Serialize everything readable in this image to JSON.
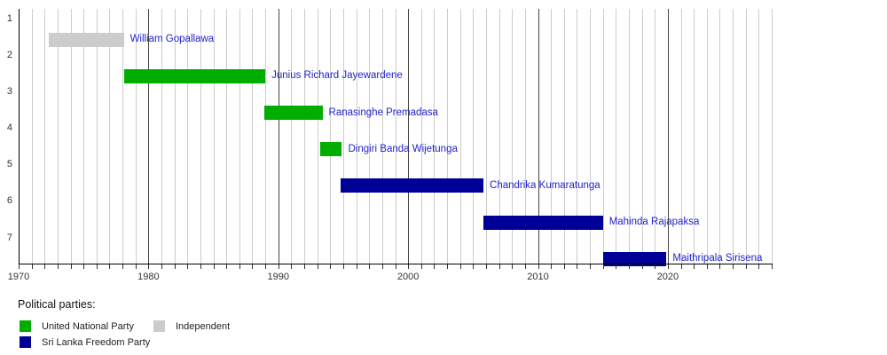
{
  "chart_data": {
    "type": "bar",
    "subtype": "gantt-timeline",
    "title": "",
    "x_axis": {
      "min": 1970,
      "max": 2028,
      "major_ticks": [
        1970,
        1980,
        1990,
        2000,
        2010,
        2020
      ],
      "major_tick_labels": [
        "1970",
        "1980",
        "1990",
        "2000",
        "2010",
        "2020"
      ],
      "minor_tick_interval": 1,
      "grid": true
    },
    "y_axis": {
      "ticks": [
        "1",
        "2",
        "3",
        "4",
        "5",
        "6",
        "7"
      ]
    },
    "bars": [
      {
        "row": 1,
        "label": "William Gopallawa",
        "party": "Independent",
        "start": 1972.3,
        "end": 1978.1
      },
      {
        "row": 2,
        "label": "Junius Richard Jayewardene",
        "party": "United National Party",
        "start": 1978.1,
        "end": 1989.0
      },
      {
        "row": 3,
        "label": "Ranasinghe Premadasa",
        "party": "United National Party",
        "start": 1988.9,
        "end": 1993.4
      },
      {
        "row": 4,
        "label": "Dingiri Banda Wijetunga",
        "party": "United National Party",
        "start": 1993.2,
        "end": 1994.9
      },
      {
        "row": 5,
        "label": "Chandrika Kumaratunga",
        "party": "Sri Lanka Freedom Party",
        "start": 1994.8,
        "end": 2005.8
      },
      {
        "row": 6,
        "label": "Mahinda Rajapaksa",
        "party": "Sri Lanka Freedom Party",
        "start": 2005.8,
        "end": 2015.0
      },
      {
        "row": 7,
        "label": "Maithripala Sirisena",
        "party": "Sri Lanka Freedom Party",
        "start": 2015.0,
        "end": 2019.9
      }
    ],
    "colors": {
      "United National Party": "#00ad00",
      "Sri Lanka Freedom Party": "#000099",
      "Independent": "#cccccc"
    },
    "style": {
      "bar_label_color": "#2222cc",
      "minor_grid_color": "#cccccc",
      "major_grid_color": "#444444",
      "axis_color": "#000000"
    },
    "legend_position": "bottom-left"
  },
  "legend": {
    "title": "Political parties:",
    "items": [
      {
        "label": "United National Party",
        "color": "#00ad00"
      },
      {
        "label": "Independent",
        "color": "#cccccc"
      },
      {
        "label": "Sri Lanka Freedom Party",
        "color": "#000099"
      }
    ]
  }
}
